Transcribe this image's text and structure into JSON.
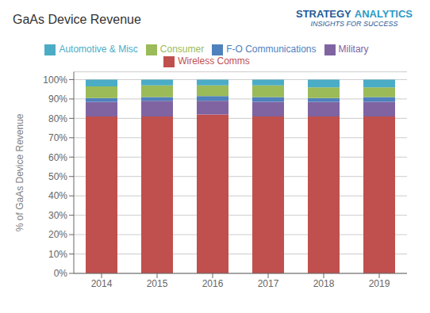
{
  "chart_data": {
    "type": "bar",
    "stacked": true,
    "title": "GaAs Device Revenue",
    "y_label": "% of GaAs Device Revenue",
    "categories": [
      "2014",
      "2015",
      "2016",
      "2017",
      "2018",
      "2019"
    ],
    "series": [
      {
        "name": "Wireless Comms",
        "color": "#C0504D",
        "values": [
          81,
          81,
          82,
          81,
          81,
          81
        ]
      },
      {
        "name": "Military",
        "color": "#8064A2",
        "values": [
          7.5,
          8,
          7,
          7.5,
          7.5,
          7.5
        ]
      },
      {
        "name": "F-O Communications",
        "color": "#4F81BD",
        "values": [
          2,
          2,
          2.5,
          2.5,
          2,
          2.5
        ]
      },
      {
        "name": "Consumer",
        "color": "#9BBB59",
        "values": [
          6,
          6,
          5.5,
          6,
          5.5,
          5
        ]
      },
      {
        "name": "Automotive & Misc",
        "color": "#4BACC6",
        "values": [
          3.5,
          3,
          3,
          3,
          4,
          4
        ]
      }
    ],
    "ylim": [
      0,
      104
    ],
    "yticks": [
      {
        "value": 0,
        "label": "0%"
      },
      {
        "value": 10,
        "label": "10%"
      },
      {
        "value": 20,
        "label": "20%"
      },
      {
        "value": 30,
        "label": "30%"
      },
      {
        "value": 40,
        "label": "40%"
      },
      {
        "value": 50,
        "label": "50%"
      },
      {
        "value": 60,
        "label": "60%"
      },
      {
        "value": 70,
        "label": "70%"
      },
      {
        "value": 80,
        "label": "80%"
      },
      {
        "value": 90,
        "label": "90%"
      },
      {
        "value": 100,
        "label": "100%"
      }
    ],
    "grid": true,
    "legend": "top",
    "annotations": [
      {
        "text": "STRATEGY",
        "color": "#1F5C99"
      },
      {
        "text": "ANALYTICS",
        "color": "#2E9AC4"
      },
      {
        "text": "INSIGHTS FOR SUCCESS",
        "color": "#1F5C99"
      }
    ]
  }
}
